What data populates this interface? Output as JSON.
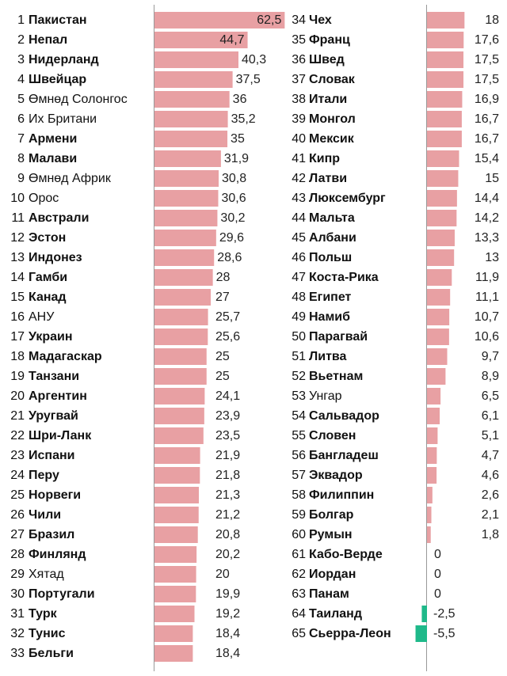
{
  "colors": {
    "positive": "#e8a0a3",
    "negative": "#1fb98a",
    "axis": "#999999",
    "text": "#111111"
  },
  "chart_data": {
    "type": "bar",
    "orientation": "horizontal",
    "grid": false,
    "legend": "none",
    "columns": [
      {
        "ranks": [
          "1",
          "2",
          "3",
          "4",
          "5",
          "6",
          "7",
          "8",
          "9",
          "10",
          "11",
          "12",
          "13",
          "14",
          "15",
          "16",
          "17",
          "18",
          "19",
          "20",
          "21",
          "22",
          "23",
          "24",
          "25",
          "26",
          "27",
          "28",
          "29",
          "30",
          "31",
          "32",
          "33"
        ],
        "categories": [
          "Пакистан",
          "Непал",
          "Нидерланд",
          "Швейцар",
          "Өмнөд Солонгос",
          "Их Британи",
          "Армени",
          "Малави",
          "Өмнөд Африк",
          "Орос",
          "Австрали",
          "Эстон",
          "Индонез",
          "Гамби",
          "Канад",
          "АНУ",
          "Украин",
          "Мадагаскар",
          "Танзани",
          "Аргентин",
          "Уругвай",
          "Шри-Ланк",
          "Испани",
          "Перу",
          "Норвеги",
          "Чили",
          "Бразил",
          "Финлянд",
          "Хятад",
          "Португали",
          "Турк",
          "Тунис",
          "Бельги"
        ],
        "values": [
          62.5,
          44.7,
          40.3,
          37.5,
          36,
          35.2,
          35,
          31.9,
          30.8,
          30.6,
          30.2,
          29.6,
          28.6,
          28,
          27,
          25.7,
          25.6,
          25,
          25,
          24.1,
          23.9,
          23.5,
          21.9,
          21.8,
          21.3,
          21.2,
          20.8,
          20.2,
          20,
          19.9,
          19.2,
          18.4,
          18.4
        ],
        "labels": [
          "62,5",
          "44,7",
          "40,3",
          "37,5",
          "36",
          "35,2",
          "35",
          "31,9",
          "30,8",
          "30,6",
          "30,2",
          "29,6",
          "28,6",
          "28",
          "27",
          "25,7",
          "25,6",
          "25",
          "25",
          "24,1",
          "23,9",
          "23,5",
          "21,9",
          "21,8",
          "21,3",
          "21,2",
          "20,8",
          "20,2",
          "20",
          "19,9",
          "19,2",
          "18,4",
          "18,4"
        ],
        "bold": [
          true,
          true,
          true,
          true,
          false,
          false,
          true,
          true,
          false,
          false,
          true,
          true,
          true,
          true,
          true,
          false,
          true,
          true,
          true,
          true,
          true,
          true,
          true,
          true,
          true,
          true,
          true,
          true,
          false,
          true,
          true,
          true,
          true
        ]
      },
      {
        "ranks": [
          "34",
          "35",
          "36",
          "37",
          "38",
          "39",
          "40",
          "41",
          "42",
          "43",
          "44",
          "45",
          "46",
          "47",
          "48",
          "49",
          "50",
          "51",
          "52",
          "53",
          "54",
          "55",
          "56",
          "57",
          "58",
          "59",
          "60",
          "61",
          "62",
          "63",
          "64",
          "65"
        ],
        "categories": [
          "Чех",
          "Франц",
          "Швед",
          "Словак",
          "Итали",
          "Монгол",
          "Мексик",
          "Кипр",
          "Латви",
          "Люксембург",
          "Мальта",
          "Албани",
          "Польш",
          "Коста-Рика",
          "Египет",
          "Намиб",
          "Парагвай",
          "Литва",
          "Вьетнам",
          "Унгар",
          "Сальвадор",
          "Словен",
          "Бангладеш",
          "Эквадор",
          "Филиппин",
          "Болгар",
          "Румын",
          "Кабо-Верде",
          "Иордан",
          "Панам",
          "Таиланд",
          "Сьерра-Леон"
        ],
        "values": [
          18,
          17.6,
          17.5,
          17.5,
          16.9,
          16.7,
          16.7,
          15.4,
          15,
          14.4,
          14.2,
          13.3,
          13,
          11.9,
          11.1,
          10.7,
          10.6,
          9.7,
          8.9,
          6.5,
          6.1,
          5.1,
          4.7,
          4.6,
          2.6,
          2.1,
          1.8,
          0,
          0,
          0,
          -2.5,
          -5.5
        ],
        "labels": [
          "18",
          "17,6",
          "17,5",
          "17,5",
          "16,9",
          "16,7",
          "16,7",
          "15,4",
          "15",
          "14,4",
          "14,2",
          "13,3",
          "13",
          "11,9",
          "11,1",
          "10,7",
          "10,6",
          "9,7",
          "8,9",
          "6,5",
          "6,1",
          "5,1",
          "4,7",
          "4,6",
          "2,6",
          "2,1",
          "1,8",
          "0",
          "0",
          "0",
          "-2,5",
          "-5,5"
        ],
        "bold": [
          true,
          true,
          true,
          true,
          true,
          true,
          true,
          true,
          true,
          true,
          true,
          true,
          true,
          true,
          true,
          true,
          true,
          true,
          true,
          false,
          true,
          true,
          true,
          true,
          true,
          true,
          true,
          true,
          true,
          true,
          true,
          true
        ]
      }
    ]
  }
}
